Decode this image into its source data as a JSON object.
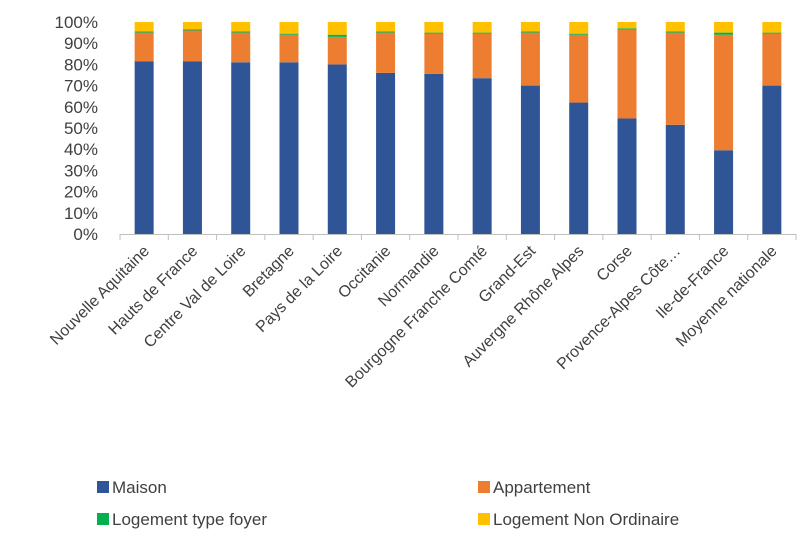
{
  "chart_data": {
    "type": "bar",
    "stacked": true,
    "percent": true,
    "categories": [
      "Nouvelle Aquitaine",
      "Hauts de France",
      "Centre Val de Loire",
      "Bretagne",
      "Pays de la Loire",
      "Occitanie",
      "Normandie",
      "Bourgogne Franche Comté",
      "Grand-Est",
      "Auvergne Rhône Alpes",
      "Corse",
      "Provence-Alpes Côte…",
      "Ile-de-France",
      "Moyenne nationale"
    ],
    "series": [
      {
        "name": "Maison",
        "color": "#2F5597",
        "values": [
          81.5,
          81.5,
          81,
          81,
          80,
          76,
          75.5,
          73.5,
          70,
          62,
          54.5,
          51.5,
          39.5,
          70
        ]
      },
      {
        "name": "Appartement",
        "color": "#ED7D31",
        "values": [
          13.5,
          14.5,
          14,
          13,
          13,
          19,
          19,
          21,
          25,
          32,
          42,
          43.5,
          54.5,
          24.5
        ]
      },
      {
        "name": "Logement type foyer",
        "color": "#00B050",
        "values": [
          0.5,
          0.5,
          0.5,
          0.5,
          1,
          0.5,
          0.5,
          0.5,
          0.5,
          0.5,
          0.5,
          0.5,
          1,
          0.5
        ]
      },
      {
        "name": "Logement Non Ordinaire",
        "color": "#FFC000",
        "values": [
          4.5,
          3.5,
          4.5,
          5.5,
          6,
          4.5,
          5,
          5,
          4.5,
          5.5,
          3,
          4.5,
          5,
          5
        ]
      }
    ],
    "y_ticks": [
      "0%",
      "10%",
      "20%",
      "30%",
      "40%",
      "50%",
      "60%",
      "70%",
      "80%",
      "90%",
      "100%"
    ],
    "ylim": [
      0,
      100
    ],
    "grid": false,
    "legend_position": "bottom"
  }
}
